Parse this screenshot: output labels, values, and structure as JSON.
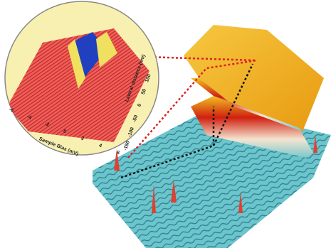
{
  "inset": {
    "x_axis": {
      "label": "Sample Bias (mV)",
      "ticks": [
        "-6",
        "-4",
        "-2",
        "0",
        "2",
        "4",
        "6"
      ]
    },
    "y_axis": {
      "label": "Lateral distance (nm)",
      "ticks": [
        "-150",
        "-100",
        "-50",
        "0",
        "50",
        "100"
      ]
    }
  }
}
